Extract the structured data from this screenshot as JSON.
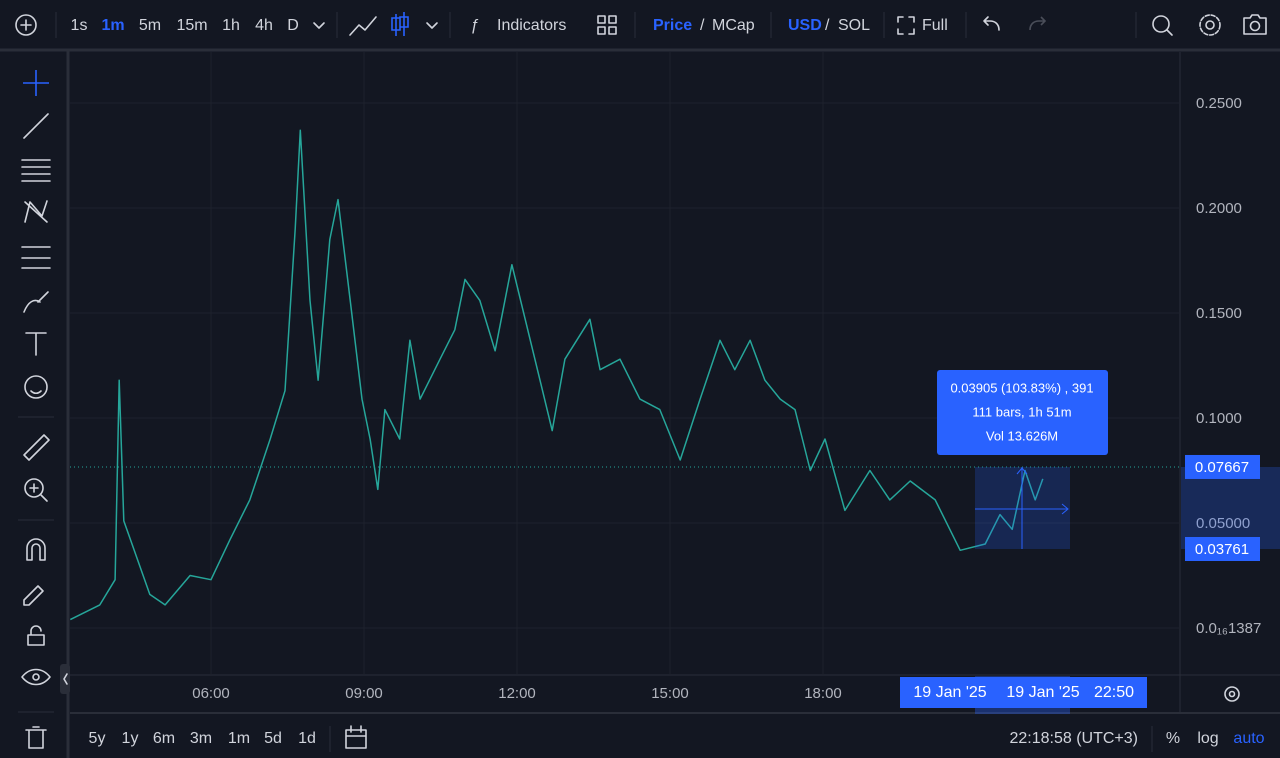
{
  "toolbar": {
    "intervals": [
      "1s",
      "1m",
      "5m",
      "15m",
      "1h",
      "4h",
      "D"
    ],
    "indicators": "Indicators",
    "price": "Price",
    "sep1": "/",
    "mcap": "MCap",
    "usd": "USD",
    "sep2": "/",
    "sol": "SOL",
    "full": "Full"
  },
  "chart_data": {
    "type": "line",
    "x": [
      3.24,
      3.82,
      4.12,
      4.2,
      4.29,
      4.45,
      4.8,
      5.1,
      5.59,
      6.0,
      6.37,
      6.76,
      7.16,
      7.45,
      7.65,
      7.75,
      7.94,
      8.1,
      8.33,
      8.49,
      8.73,
      8.96,
      9.12,
      9.27,
      9.41,
      9.7,
      9.9,
      10.1,
      10.49,
      10.78,
      10.98,
      11.27,
      11.57,
      11.9,
      12.16,
      12.45,
      12.69,
      12.94,
      13.43,
      13.63,
      14.02,
      14.41,
      14.8,
      15.2,
      15.59,
      15.98,
      16.27,
      16.57,
      16.86,
      17.16,
      17.45,
      17.75,
      18.04,
      18.43,
      18.92,
      19.31,
      19.71,
      20.2,
      20.69,
      21.18,
      21.47,
      21.71,
      21.96,
      22.16,
      22.31
    ],
    "values": [
      0.004,
      0.011,
      0.023,
      0.118,
      0.051,
      0.04,
      0.016,
      0.011,
      0.025,
      0.023,
      0.042,
      0.061,
      0.09,
      0.113,
      0.19,
      0.237,
      0.156,
      0.118,
      0.185,
      0.204,
      0.156,
      0.109,
      0.09,
      0.066,
      0.104,
      0.09,
      0.137,
      0.109,
      0.128,
      0.142,
      0.166,
      0.156,
      0.132,
      0.173,
      0.147,
      0.118,
      0.094,
      0.128,
      0.147,
      0.123,
      0.128,
      0.109,
      0.104,
      0.08,
      0.109,
      0.137,
      0.123,
      0.137,
      0.118,
      0.109,
      0.104,
      0.075,
      0.09,
      0.056,
      0.075,
      0.061,
      0.07,
      0.061,
      0.037,
      0.04,
      0.054,
      0.047,
      0.075,
      0.061,
      0.071
    ],
    "color": "#26a69a",
    "xlim": [
      3.235,
      25
    ],
    "xticks": [
      {
        "value": 6,
        "label": "06:00"
      },
      {
        "value": 9,
        "label": "09:00"
      },
      {
        "value": 12,
        "label": "12:00"
      },
      {
        "value": 15,
        "label": "15:00"
      },
      {
        "value": 18,
        "label": "18:00"
      }
    ],
    "ylim": [
      -0.0224,
      0.2743
    ],
    "yticks": [
      {
        "value": 1.387e-17,
        "label": "0.0₁₆1387"
      },
      {
        "value": 0.05,
        "label": "0.05000"
      },
      {
        "value": 0.1,
        "label": "0.1000"
      },
      {
        "value": 0.15,
        "label": "0.1500"
      },
      {
        "value": 0.2,
        "label": "0.2000"
      },
      {
        "value": 0.25,
        "label": "0.2500"
      }
    ],
    "grid": true,
    "price_labels": [
      0.07667,
      0.03761
    ]
  },
  "measure": {
    "summary": "0.03905 (103.83%) , 391",
    "bars": "111 bars, 1h 51m",
    "volume": "Vol 13.626M"
  },
  "time_labels": {
    "start_date": "19 Jan '25",
    "end_date": "19 Jan '25",
    "end_time": "22:50"
  },
  "footer": {
    "ranges": [
      "5y",
      "1y",
      "6m",
      "3m",
      "1m",
      "5d",
      "1d"
    ],
    "clock": "22:18:58 (UTC+3)",
    "percent": "%",
    "log": "log",
    "auto": "auto"
  }
}
